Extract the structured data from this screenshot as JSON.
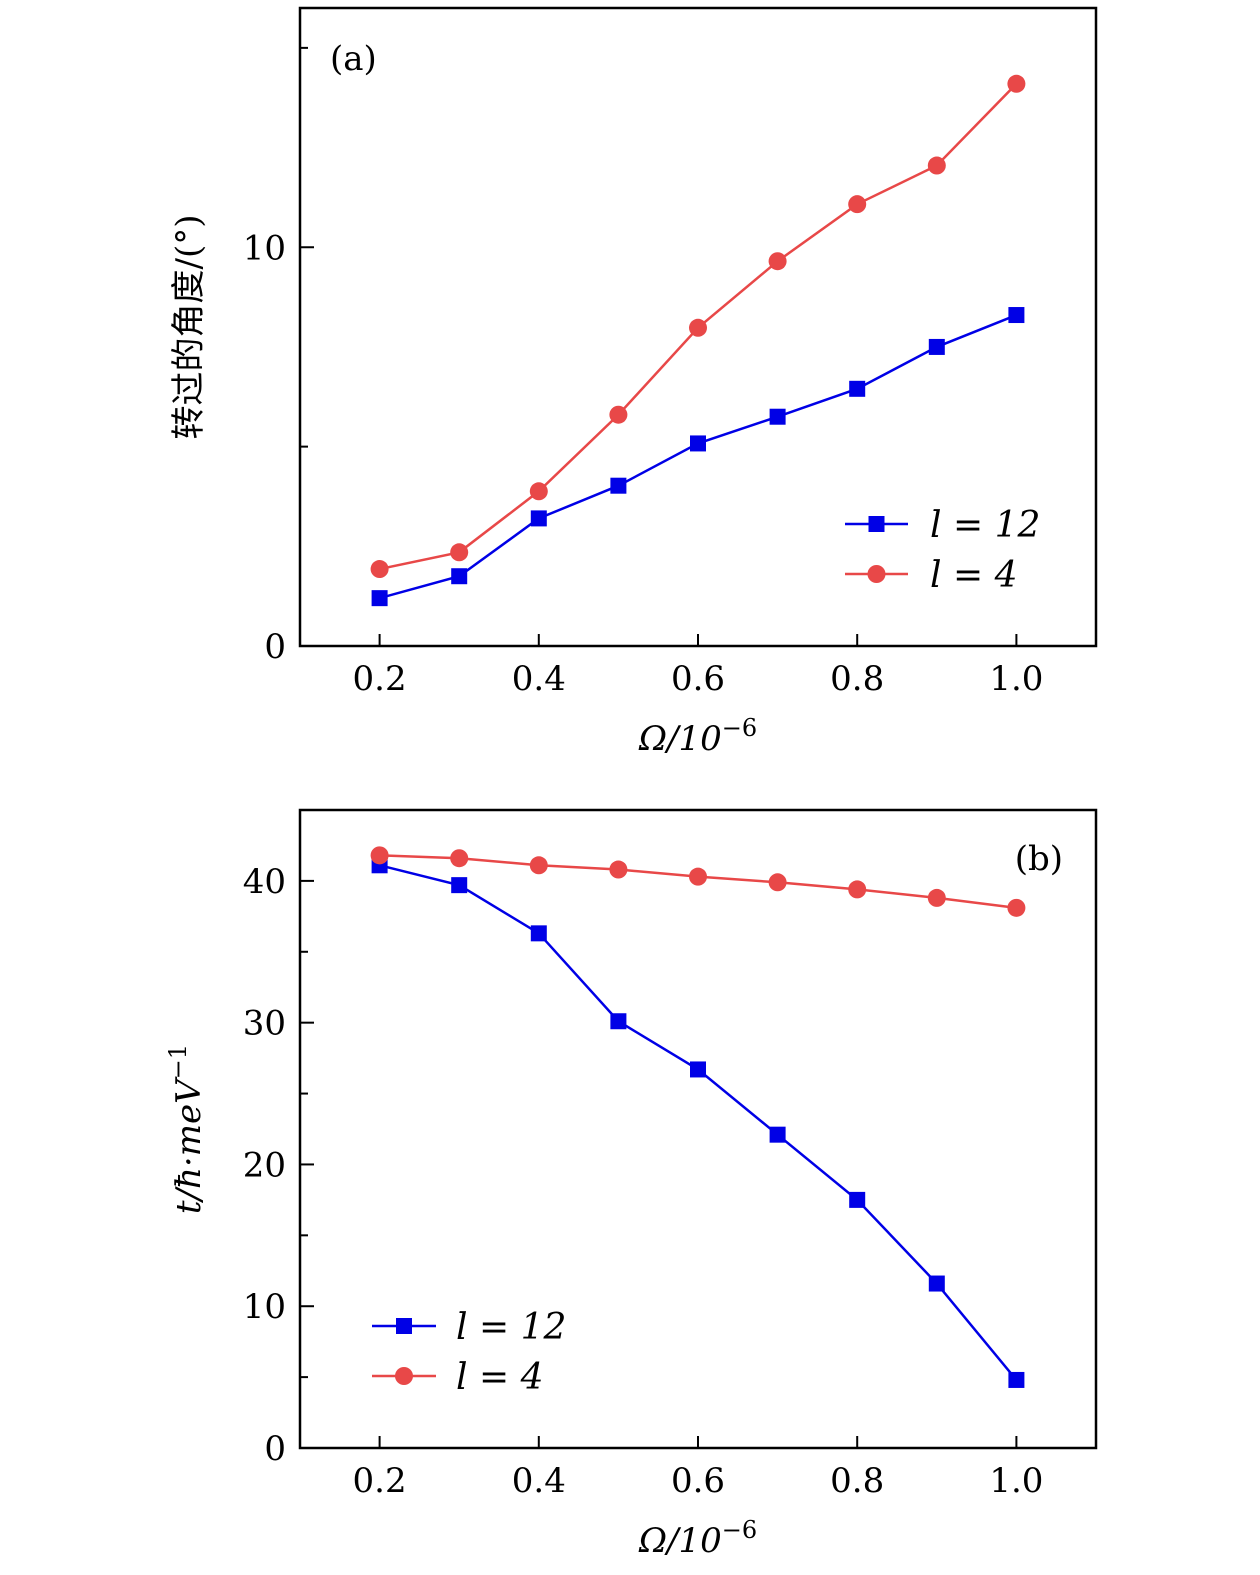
{
  "colors": {
    "series_blue": "#0000e6",
    "series_red": "#e84848",
    "axis": "#000000"
  },
  "chart_data": [
    {
      "type": "line",
      "panel_label": "(a)",
      "x": [
        0.2,
        0.3,
        0.4,
        0.5,
        0.6,
        0.7,
        0.8,
        0.9,
        1.0
      ],
      "series": [
        {
          "name": "l = 12",
          "marker": "square",
          "color": "#0000e6",
          "values": [
            1.2,
            1.75,
            3.2,
            4.02,
            5.08,
            5.75,
            6.45,
            7.5,
            8.3
          ]
        },
        {
          "name": "l = 4",
          "marker": "circle",
          "color": "#e84848",
          "values": [
            1.93,
            2.35,
            3.88,
            5.8,
            7.98,
            9.65,
            11.08,
            12.05,
            14.1
          ]
        }
      ],
      "xlim": [
        0.1,
        1.1
      ],
      "ylim": [
        0,
        16
      ],
      "xticks": [
        "0.2",
        "0.4",
        "0.6",
        "0.8",
        "1.0"
      ],
      "xtick_values": [
        0.2,
        0.4,
        0.6,
        0.8,
        1.0
      ],
      "yticks": [
        "0",
        "10"
      ],
      "ytick_values": [
        0,
        10
      ],
      "yminor_ticks": [
        5,
        15
      ],
      "xlabel": "Ω/10",
      "xlabel_exp": "−6",
      "ylabel": "转过的角度/(°)",
      "legend_position": "lower-right",
      "grid": false
    },
    {
      "type": "line",
      "panel_label": "(b)",
      "x": [
        0.2,
        0.3,
        0.4,
        0.5,
        0.6,
        0.7,
        0.8,
        0.9,
        1.0
      ],
      "series": [
        {
          "name": "l = 12",
          "marker": "square",
          "color": "#0000e6",
          "values": [
            41.1,
            39.7,
            36.3,
            30.1,
            26.7,
            22.1,
            17.5,
            11.6,
            4.8
          ]
        },
        {
          "name": "l = 4",
          "marker": "circle",
          "color": "#e84848",
          "values": [
            41.8,
            41.6,
            41.1,
            40.8,
            40.3,
            39.9,
            39.4,
            38.8,
            38.1
          ]
        }
      ],
      "xlim": [
        0.1,
        1.1
      ],
      "ylim": [
        0,
        45
      ],
      "xticks": [
        "0.2",
        "0.4",
        "0.6",
        "0.8",
        "1.0"
      ],
      "xtick_values": [
        0.2,
        0.4,
        0.6,
        0.8,
        1.0
      ],
      "yticks": [
        "0",
        "10",
        "20",
        "30",
        "40"
      ],
      "ytick_values": [
        0,
        10,
        20,
        30,
        40
      ],
      "yminor_ticks": [
        5,
        15,
        25,
        35
      ],
      "xlabel": "Ω/10",
      "xlabel_exp": "−6",
      "ylabel": "t/ħ·meV",
      "ylabel_exp": "−1",
      "legend_position": "lower-left",
      "grid": false
    }
  ]
}
